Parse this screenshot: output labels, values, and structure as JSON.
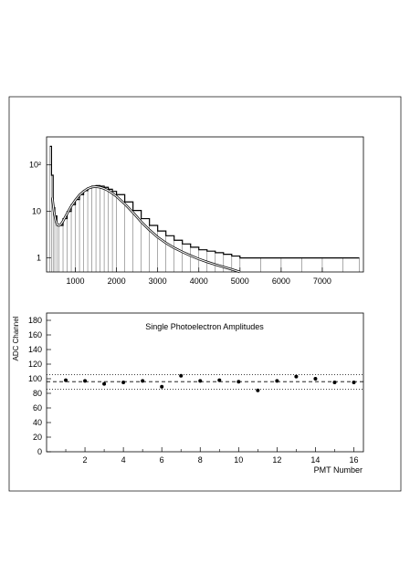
{
  "chart_data": [
    {
      "type": "histogram",
      "title": "",
      "xlabel": "",
      "ylabel": "",
      "yscale": "log",
      "xlim": [
        300,
        8000
      ],
      "ylim": [
        0.5,
        400
      ],
      "x_ticks": [
        1000,
        2000,
        3000,
        4000,
        5000,
        6000,
        7000
      ],
      "y_ticks": [
        {
          "value": 100,
          "label": "10²"
        },
        {
          "value": 10,
          "label": "10"
        },
        {
          "value": 1,
          "label": "1"
        }
      ],
      "series": [
        {
          "kind": "histogram",
          "x": [
            380,
            420,
            460,
            500,
            550,
            600,
            700,
            800,
            900,
            1000,
            1100,
            1200,
            1300,
            1400,
            1500,
            1600,
            1700,
            1800,
            1900,
            2000,
            2200,
            2400,
            2600,
            2800,
            3000,
            3200,
            3400,
            3600,
            3800,
            4000,
            4200,
            4400,
            4600,
            4800,
            5000,
            5500,
            6000,
            6500,
            7000,
            7500,
            7900
          ],
          "counts": [
            250,
            60,
            12,
            8,
            5,
            5,
            7,
            10,
            14,
            18,
            23,
            28,
            32,
            35,
            36,
            35,
            33,
            30,
            27,
            23,
            16,
            10.5,
            7,
            5,
            3.8,
            3,
            2.4,
            2,
            1.7,
            1.5,
            1.4,
            1.3,
            1.2,
            1.1,
            1,
            1,
            1,
            1,
            1,
            1,
            1
          ]
        },
        {
          "kind": "fit",
          "x": [
            440,
            480,
            520,
            560,
            600,
            650,
            700,
            800,
            900,
            1000,
            1100,
            1200,
            1300,
            1400,
            1500,
            1600,
            1700,
            1800,
            1900,
            2000,
            2200,
            2400,
            2600,
            2800,
            3000,
            3200,
            3400,
            3600,
            3800,
            4000,
            4200,
            4400,
            4600,
            4800,
            5000
          ],
          "y": [
            20,
            10,
            6.5,
            5.2,
            5,
            5.3,
            6.2,
            9,
            13,
            17.5,
            22.5,
            27,
            31,
            33.5,
            34,
            33,
            31,
            28,
            24.5,
            21,
            14.5,
            9.5,
            6,
            4,
            2.8,
            2.1,
            1.65,
            1.35,
            1.12,
            0.95,
            0.82,
            0.72,
            0.64,
            0.57,
            0.5
          ]
        }
      ]
    },
    {
      "type": "scatter",
      "title": "Single Photoelectron  Amplitudes",
      "xlabel": "PMT Number",
      "ylabel": "ADC  Channel",
      "xlim": [
        0,
        16.5
      ],
      "ylim": [
        0,
        190
      ],
      "x_ticks": [
        2,
        4,
        6,
        8,
        10,
        12,
        14,
        16
      ],
      "y_ticks": [
        0,
        20,
        40,
        60,
        80,
        100,
        120,
        140,
        160,
        180
      ],
      "series": [
        {
          "x": [
            1,
            2,
            3,
            4,
            5,
            6,
            7,
            8,
            9,
            10,
            11,
            12,
            13,
            14,
            15,
            16
          ],
          "y": [
            98,
            97,
            93,
            95,
            97,
            89,
            104,
            97,
            98,
            96,
            84,
            97,
            103,
            100,
            95,
            95
          ]
        }
      ],
      "reference_lines": {
        "mean": 96,
        "upper": 105.5,
        "lower": 85.5
      }
    }
  ]
}
